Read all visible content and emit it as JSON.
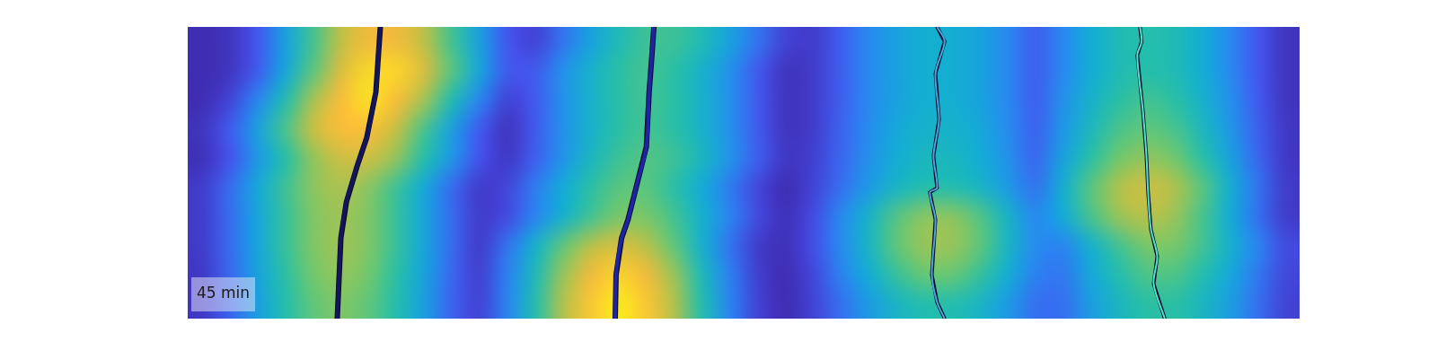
{
  "chart_data": {
    "type": "heatmap",
    "xlim": [
      0,
      40
    ],
    "ylim": [
      0,
      10
    ],
    "tick_labels": false,
    "grid": false,
    "color_range": [
      0,
      1
    ],
    "cells": [
      [
        0.02,
        0.04,
        0.13,
        0.33,
        0.55,
        0.75,
        0.86,
        0.86,
        0.75,
        0.55,
        0.33,
        0.13,
        0.08,
        0.2,
        0.34,
        0.47,
        0.54,
        0.54,
        0.47,
        0.34,
        0.2,
        0.08,
        0.06,
        0.15,
        0.25,
        0.34,
        0.39,
        0.39,
        0.34,
        0.25,
        0.15,
        0.25,
        0.38,
        0.47,
        0.5,
        0.47,
        0.38,
        0.25,
        0.13,
        0.04
      ],
      [
        0.02,
        0.04,
        0.14,
        0.35,
        0.59,
        0.81,
        0.93,
        0.93,
        0.81,
        0.59,
        0.35,
        0.14,
        0.14,
        0.28,
        0.41,
        0.51,
        0.55,
        0.51,
        0.41,
        0.28,
        0.14,
        0.04,
        0.06,
        0.15,
        0.25,
        0.34,
        0.39,
        0.39,
        0.34,
        0.25,
        0.15,
        0.25,
        0.38,
        0.47,
        0.5,
        0.47,
        0.38,
        0.25,
        0.13,
        0.04
      ],
      [
        0.02,
        0.08,
        0.24,
        0.48,
        0.71,
        0.88,
        0.95,
        0.88,
        0.71,
        0.48,
        0.24,
        0.08,
        0.14,
        0.28,
        0.41,
        0.51,
        0.55,
        0.51,
        0.41,
        0.28,
        0.14,
        0.04,
        0.06,
        0.15,
        0.25,
        0.34,
        0.39,
        0.39,
        0.34,
        0.25,
        0.15,
        0.28,
        0.41,
        0.51,
        0.55,
        0.51,
        0.41,
        0.28,
        0.14,
        0.04
      ],
      [
        0.04,
        0.14,
        0.33,
        0.56,
        0.77,
        0.88,
        0.88,
        0.77,
        0.56,
        0.33,
        0.14,
        0.04,
        0.14,
        0.28,
        0.41,
        0.51,
        0.55,
        0.51,
        0.41,
        0.28,
        0.14,
        0.04,
        0.06,
        0.16,
        0.26,
        0.36,
        0.41,
        0.41,
        0.36,
        0.26,
        0.16,
        0.3,
        0.45,
        0.56,
        0.6,
        0.56,
        0.45,
        0.3,
        0.15,
        0.05
      ],
      [
        0.03,
        0.12,
        0.3,
        0.5,
        0.68,
        0.78,
        0.78,
        0.68,
        0.5,
        0.3,
        0.12,
        0.05,
        0.15,
        0.29,
        0.44,
        0.54,
        0.58,
        0.54,
        0.44,
        0.29,
        0.15,
        0.05,
        0.07,
        0.17,
        0.28,
        0.38,
        0.44,
        0.44,
        0.38,
        0.28,
        0.17,
        0.34,
        0.51,
        0.63,
        0.68,
        0.63,
        0.51,
        0.34,
        0.17,
        0.05
      ],
      [
        0.06,
        0.18,
        0.36,
        0.54,
        0.67,
        0.72,
        0.67,
        0.54,
        0.36,
        0.18,
        0.06,
        0.09,
        0.22,
        0.37,
        0.51,
        0.59,
        0.59,
        0.51,
        0.37,
        0.22,
        0.09,
        0.02,
        0.08,
        0.19,
        0.31,
        0.43,
        0.49,
        0.49,
        0.43,
        0.31,
        0.2,
        0.39,
        0.59,
        0.73,
        0.78,
        0.73,
        0.59,
        0.39,
        0.2,
        0.06
      ],
      [
        0.06,
        0.18,
        0.35,
        0.53,
        0.65,
        0.7,
        0.65,
        0.53,
        0.35,
        0.18,
        0.06,
        0.1,
        0.24,
        0.4,
        0.55,
        0.64,
        0.64,
        0.55,
        0.4,
        0.24,
        0.1,
        0.03,
        0.1,
        0.25,
        0.42,
        0.58,
        0.67,
        0.67,
        0.58,
        0.42,
        0.25,
        0.37,
        0.56,
        0.69,
        0.74,
        0.69,
        0.56,
        0.37,
        0.19,
        0.06
      ],
      [
        0.06,
        0.18,
        0.35,
        0.53,
        0.65,
        0.7,
        0.65,
        0.53,
        0.35,
        0.18,
        0.06,
        0.2,
        0.4,
        0.6,
        0.74,
        0.8,
        0.74,
        0.6,
        0.4,
        0.2,
        0.06,
        0.03,
        0.11,
        0.26,
        0.43,
        0.6,
        0.69,
        0.69,
        0.6,
        0.43,
        0.26,
        0.24,
        0.4,
        0.55,
        0.64,
        0.64,
        0.55,
        0.4,
        0.24,
        0.1
      ],
      [
        0.05,
        0.17,
        0.34,
        0.51,
        0.63,
        0.68,
        0.63,
        0.51,
        0.34,
        0.17,
        0.07,
        0.23,
        0.46,
        0.69,
        0.86,
        0.92,
        0.86,
        0.69,
        0.46,
        0.23,
        0.07,
        0.02,
        0.09,
        0.23,
        0.38,
        0.53,
        0.61,
        0.61,
        0.53,
        0.38,
        0.23,
        0.21,
        0.36,
        0.49,
        0.57,
        0.57,
        0.49,
        0.36,
        0.21,
        0.09
      ],
      [
        0.05,
        0.16,
        0.33,
        0.49,
        0.6,
        0.65,
        0.6,
        0.49,
        0.33,
        0.16,
        0.08,
        0.24,
        0.49,
        0.73,
        0.9,
        0.97,
        0.9,
        0.73,
        0.49,
        0.24,
        0.08,
        0.02,
        0.08,
        0.19,
        0.31,
        0.43,
        0.49,
        0.49,
        0.43,
        0.31,
        0.19,
        0.19,
        0.32,
        0.44,
        0.51,
        0.51,
        0.44,
        0.32,
        0.19,
        0.08
      ]
    ],
    "series": [
      {
        "type": "line",
        "color": "#15155e",
        "x": [
          6.93,
          6.86,
          6.77,
          6.44,
          6.11,
          5.71,
          5.51,
          5.45,
          5.38
        ],
        "values": [
          10,
          9.03,
          7.77,
          6.2,
          5.27,
          4.0,
          2.76,
          1.5,
          0
        ]
      },
      {
        "type": "line",
        "color": "#1f24a6",
        "x": [
          16.77,
          16.7,
          16.6,
          16.5,
          16.17,
          15.84,
          15.61,
          15.41,
          15.38
        ],
        "values": [
          10,
          9.03,
          7.77,
          5.89,
          4.64,
          3.39,
          2.76,
          1.5,
          0
        ]
      },
      {
        "type": "line",
        "color": "#4aa6dc",
        "x": [
          26.96,
          27.23,
          26.9,
          27.03,
          26.83,
          26.96,
          26.7,
          26.9,
          26.77,
          26.96,
          27.23
        ],
        "values": [
          10,
          9.5,
          8.4,
          6.83,
          5.58,
          4.48,
          4.33,
          3.39,
          1.5,
          0.56,
          0
        ]
      },
      {
        "type": "line",
        "color": "#50e3c8",
        "x": [
          34.26,
          34.32,
          34.16,
          34.36,
          34.49,
          34.55,
          34.65,
          34.88,
          34.75,
          35.15
        ],
        "values": [
          10,
          9.5,
          9.03,
          7.15,
          5.58,
          4.33,
          3.07,
          2.13,
          1.19,
          0
        ]
      }
    ],
    "annotations": [
      "45 min"
    ]
  }
}
